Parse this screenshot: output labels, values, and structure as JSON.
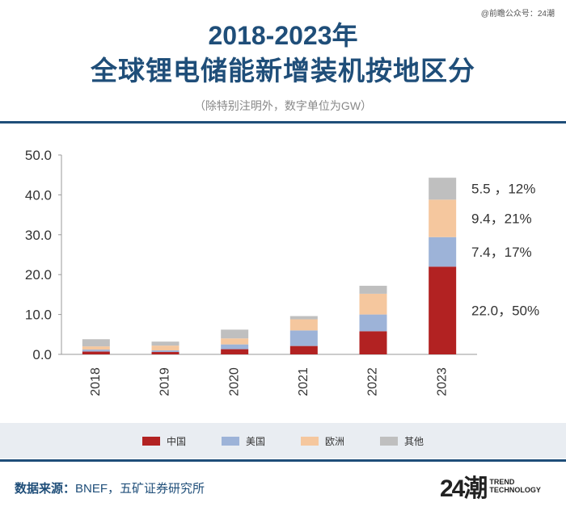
{
  "watermark": "@前瞻公众号：24潮",
  "title_line1": "2018-2023年",
  "title_line2": "全球锂电储能新增装机按地区分",
  "subtitle": "（除特别注明外，数字单位为GW）",
  "source_label": "数据来源：",
  "source_text": "BNEF，五矿证券研究所",
  "logo_mark": "24潮",
  "logo_text_1": "TREND",
  "logo_text_2": "TECHNOLOGY",
  "colors": {
    "china": "#b22222",
    "usa": "#9db3d8",
    "europe": "#f5c79e",
    "other": "#bfbfbf",
    "title": "#1f4e79"
  },
  "chart_data": {
    "type": "bar",
    "stacked": true,
    "categories": [
      "2018",
      "2019",
      "2020",
      "2021",
      "2022",
      "2023"
    ],
    "series": [
      {
        "name": "中国",
        "color": "#b22222",
        "values": [
          0.7,
          0.6,
          1.3,
          2.1,
          5.8,
          22.0
        ]
      },
      {
        "name": "美国",
        "color": "#9db3d8",
        "values": [
          0.5,
          0.4,
          1.2,
          3.9,
          4.2,
          7.4
        ]
      },
      {
        "name": "欧洲",
        "color": "#f5c79e",
        "values": [
          0.8,
          1.2,
          1.5,
          2.8,
          5.2,
          9.4
        ]
      },
      {
        "name": "其他",
        "color": "#bfbfbf",
        "values": [
          1.8,
          1.0,
          2.2,
          0.8,
          2.0,
          5.5
        ]
      }
    ],
    "ylim": [
      0,
      50
    ],
    "yticks": [
      "0.0",
      "10.0",
      "20.0",
      "30.0",
      "40.0",
      "50.0"
    ],
    "legend_position": "bottom",
    "annotations": [
      {
        "series": "其他",
        "text": "5.5 ，12%"
      },
      {
        "series": "欧洲",
        "text": "9.4，21%"
      },
      {
        "series": "美国",
        "text": "7.4，17%"
      },
      {
        "series": "中国",
        "text": "22.0，50%"
      }
    ]
  }
}
